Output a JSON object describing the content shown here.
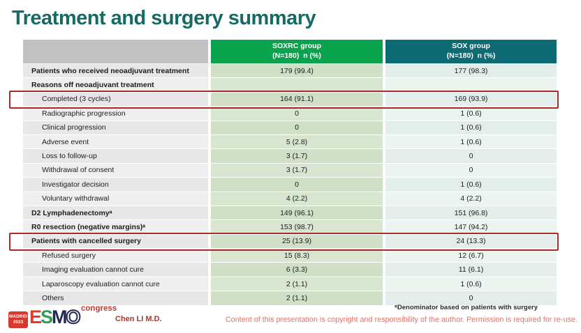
{
  "slide": {
    "title": "Treatment and surgery summary",
    "colors": {
      "title_teal": "#176a63",
      "soxrc_header_green": "#0ba24e",
      "sox_header_teal": "#0c6b73",
      "label_header_gray": "#c1c1c1",
      "soxrc_cell_green": "#cfe0c7",
      "sox_cell_tint": "#e3eeea",
      "highlight_red": "#a32d28",
      "esmo_red": "#e23b2e",
      "esmo_green": "#2f9e4f",
      "esmo_navy": "#232a52"
    }
  },
  "table": {
    "header": {
      "soxrc": {
        "line1": "SOXRC group",
        "line2": "(N=180)  n (%)"
      },
      "sox": {
        "line1": "SOX group",
        "line2": "(N=180)  n (%)"
      }
    },
    "rows": [
      {
        "label": "Patients who received neoadjuvant treatment",
        "bold": true,
        "indent": false,
        "soxrc": "179 (99.4)",
        "sox": "177 (98.3)",
        "highlighted": false
      },
      {
        "label": "Reasons off neoadjuvant treatment",
        "bold": true,
        "indent": false,
        "soxrc": "",
        "sox": "",
        "highlighted": false
      },
      {
        "label": "Completed (3 cycles)",
        "bold": false,
        "indent": true,
        "soxrc": "164 (91.1)",
        "sox": "169 (93.9)",
        "highlighted": true
      },
      {
        "label": "Radiographic progression",
        "bold": false,
        "indent": true,
        "soxrc": "0",
        "sox": "1 (0.6)",
        "highlighted": false
      },
      {
        "label": "Clinical progression",
        "bold": false,
        "indent": true,
        "soxrc": "0",
        "sox": "1 (0.6)",
        "highlighted": false
      },
      {
        "label": "Adverse event",
        "bold": false,
        "indent": true,
        "soxrc": "5 (2.8)",
        "sox": "1 (0.6)",
        "highlighted": false
      },
      {
        "label": "Loss to follow-up",
        "bold": false,
        "indent": true,
        "soxrc": "3 (1.7)",
        "sox": "0",
        "highlighted": false
      },
      {
        "label": "Withdrawal of consent",
        "bold": false,
        "indent": true,
        "soxrc": "3 (1.7)",
        "sox": "0",
        "highlighted": false
      },
      {
        "label": "Investigator decision",
        "bold": false,
        "indent": true,
        "soxrc": "0",
        "sox": "1 (0.6)",
        "highlighted": false
      },
      {
        "label": "Voluntary withdrawal",
        "bold": false,
        "indent": true,
        "soxrc": "4 (2.2)",
        "sox": "4 (2.2)",
        "highlighted": false
      },
      {
        "label": "D2 Lymphadenectomyᵃ",
        "bold": true,
        "indent": false,
        "soxrc": "149 (96.1)",
        "sox": "151 (96.8)",
        "highlighted": false
      },
      {
        "label": "R0 resection (negative margins)ᵃ",
        "bold": true,
        "indent": false,
        "soxrc": "153 (98.7)",
        "sox": "147 (94.2)",
        "highlighted": false
      },
      {
        "label": "Patients with cancelled surgery",
        "bold": true,
        "indent": false,
        "soxrc": "25 (13.9)",
        "sox": "24 (13.3)",
        "highlighted": true
      },
      {
        "label": "Refused surgery",
        "bold": false,
        "indent": true,
        "soxrc": "15 (8.3)",
        "sox": "12 (6.7)",
        "highlighted": false
      },
      {
        "label": "Imaging evaluation cannot cure",
        "bold": false,
        "indent": true,
        "soxrc": "6 (3.3)",
        "sox": "11 (6.1)",
        "highlighted": false
      },
      {
        "label": "Laparoscopy evaluation cannot cure",
        "bold": false,
        "indent": true,
        "soxrc": "2 (1.1)",
        "sox": "1 (0.6)",
        "highlighted": false
      },
      {
        "label": "Others",
        "bold": false,
        "indent": true,
        "soxrc": "2 (1.1)",
        "sox": "0",
        "highlighted": false
      }
    ]
  },
  "footer": {
    "logo": {
      "madrid_line1": "MADRID",
      "madrid_line2": "2023",
      "esmo": [
        "E",
        "S",
        "M",
        "O"
      ],
      "congress": "congress"
    },
    "presenter": "Chen LI M.D.",
    "footnote": "ᵃDenominator based on patients with surgery",
    "copyright": "Content of this presentation is copyright and responsibility of the author. Permission is required for re-use."
  }
}
